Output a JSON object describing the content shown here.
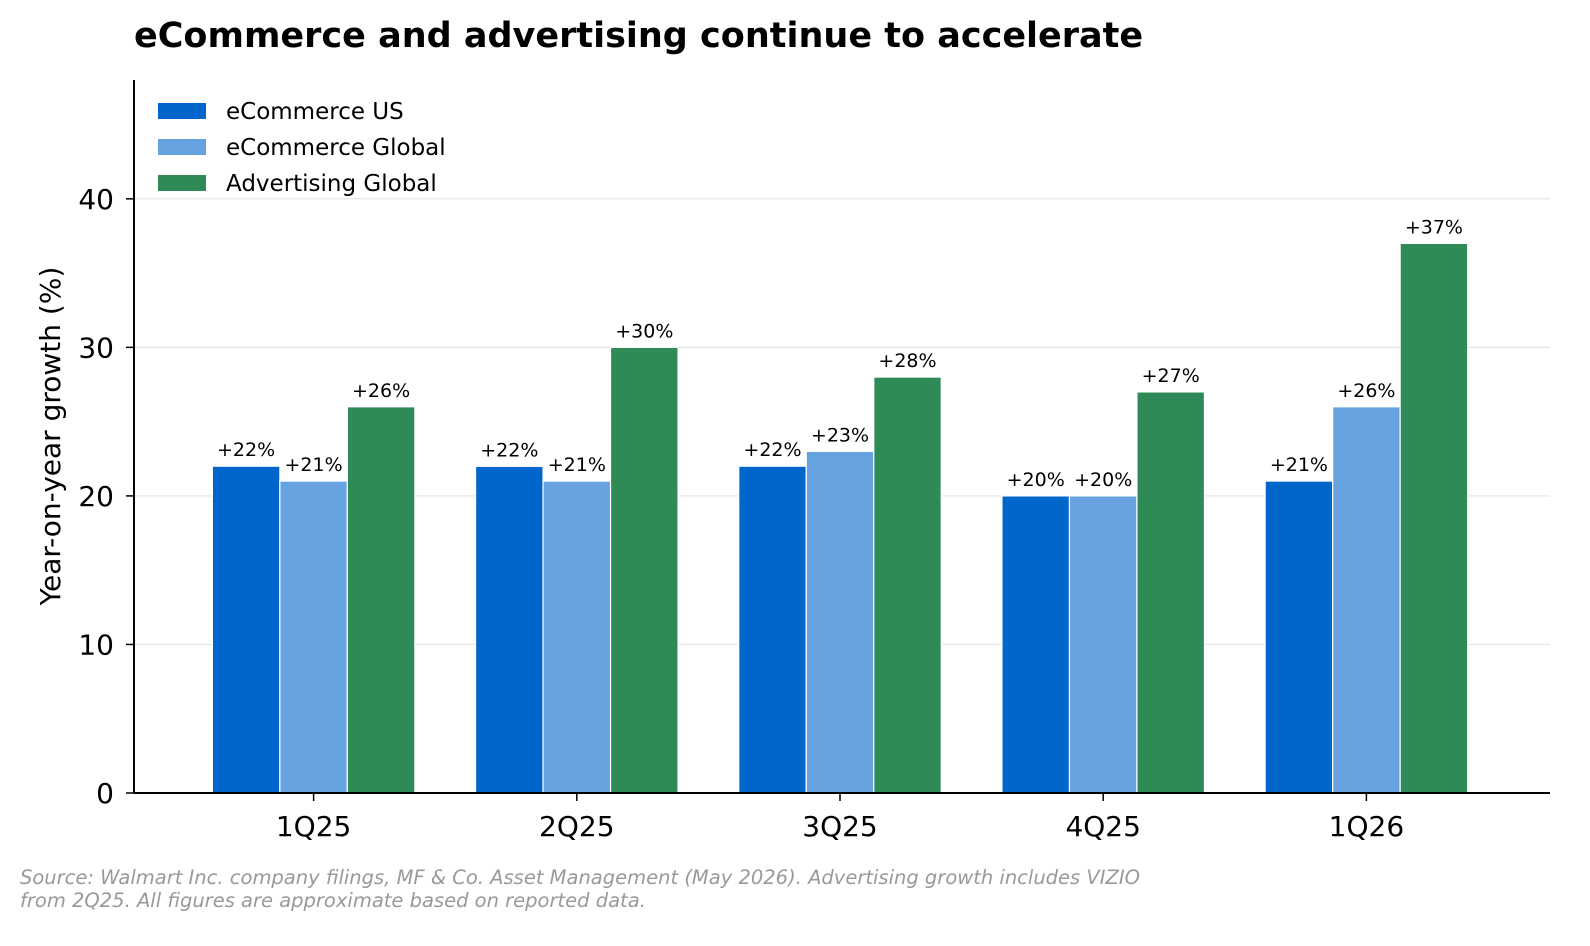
{
  "chart_data": {
    "type": "bar",
    "title": "eCommerce and advertising continue to accelerate",
    "xlabel": "",
    "ylabel": "Year-on-year growth (%)",
    "categories": [
      "1Q25",
      "2Q25",
      "3Q25",
      "4Q25",
      "1Q26"
    ],
    "ylim": [
      0,
      48
    ],
    "yticks": [
      "0",
      "10",
      "20",
      "30",
      "40"
    ],
    "grid": "horizontal",
    "legend_position": "top-left",
    "series": [
      {
        "name": "eCommerce US",
        "color": "#0066CC",
        "values": [
          22,
          21.99,
          22,
          20,
          21
        ],
        "labels": [
          "+22%",
          "+22%",
          "+22%",
          "+20%",
          "+21%"
        ]
      },
      {
        "name": "eCommerce Global",
        "color": "#66A3E0",
        "values": [
          21,
          21,
          23,
          20,
          26
        ],
        "labels": [
          "+21%",
          "+21%",
          "+23%",
          "+20%",
          "+26%"
        ]
      },
      {
        "name": "Advertising Global",
        "color": "#2E8B57",
        "values": [
          26,
          30,
          28,
          27,
          37
        ],
        "labels": [
          "+26%",
          "+30%",
          "+28%",
          "+27%",
          "+37%"
        ]
      }
    ]
  },
  "footer": {
    "source_line1": "Source: Walmart Inc. company filings, MF & Co. Asset Management (May 2026). Advertising growth includes VIZIO",
    "source_line2": "from 2Q25. All figures are approximate based on reported data."
  }
}
